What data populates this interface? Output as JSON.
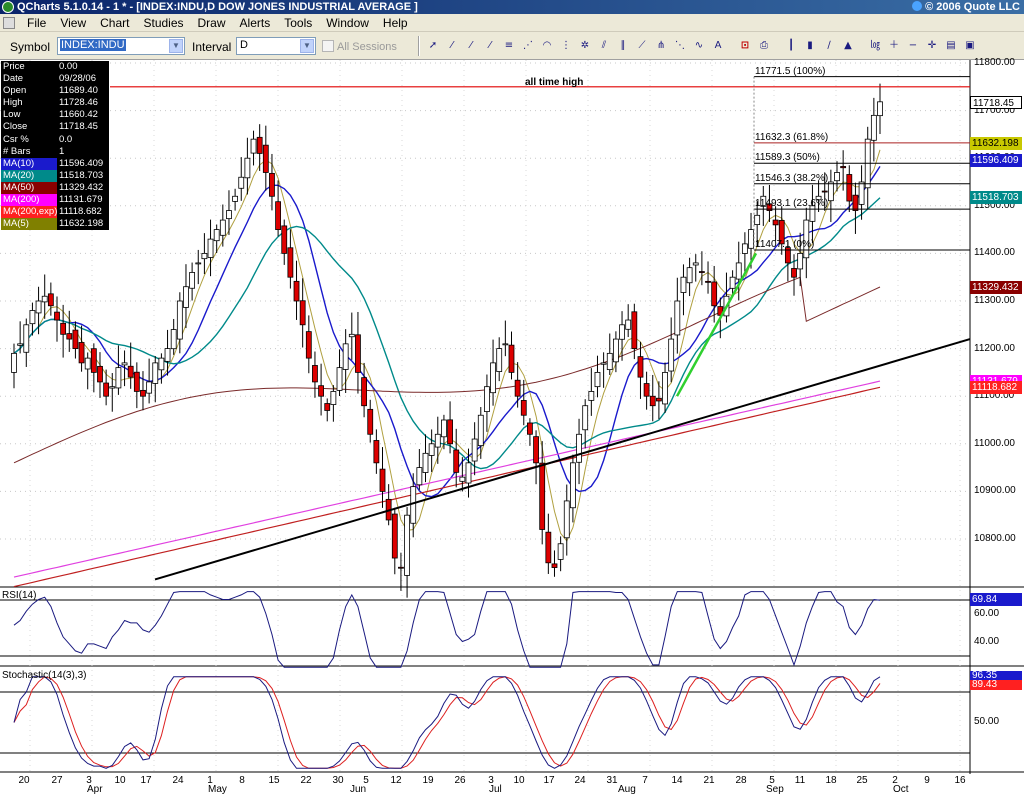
{
  "window": {
    "title": "QCharts 5.1.0.14 - 1 * - [INDEX:INDU,D DOW JONES INDUSTRIAL AVERAGE   ]",
    "copyright": "© 2006 Quote LLC"
  },
  "menu": [
    "File",
    "View",
    "Chart",
    "Studies",
    "Draw",
    "Alerts",
    "Tools",
    "Window",
    "Help"
  ],
  "toolbar": {
    "symbol_label": "Symbol",
    "symbol_value": "INDEX:INDU",
    "interval_label": "Interval",
    "interval_value": "D",
    "all_sessions_label": "All Sessions",
    "all_sessions_checked": false,
    "tool_icons": [
      "cursor-icon",
      "line-icon",
      "ray-icon",
      "extended-line-icon",
      "fib-retracement-icon",
      "fib-fan-icon",
      "fib-arc-icon",
      "fib-time-icon",
      "gann-icon",
      "channel-icon",
      "parallel-icon",
      "regression-icon",
      "andrews-icon",
      "speed-lines-icon",
      "cycle-icon",
      "text-icon",
      "alert-icon",
      "print-icon",
      "bar-chart-icon",
      "candle-chart-icon",
      "line-chart-icon",
      "mountain-chart-icon",
      "log-scale-icon",
      "zoom-in-icon",
      "zoom-out-icon",
      "crosshair-icon",
      "data-window-icon",
      "snapshot-icon"
    ]
  },
  "databox": [
    {
      "label": "Price",
      "value": "0.00",
      "bg": "#000000",
      "fg": "#ffffff"
    },
    {
      "label": "Date",
      "value": "09/28/06",
      "bg": "#000000",
      "fg": "#ffffff"
    },
    {
      "label": "Open",
      "value": "11689.40",
      "bg": "#000000",
      "fg": "#ffffff"
    },
    {
      "label": "High",
      "value": "11728.46",
      "bg": "#000000",
      "fg": "#ffffff"
    },
    {
      "label": "Low",
      "value": "11660.42",
      "bg": "#000000",
      "fg": "#ffffff"
    },
    {
      "label": "Close",
      "value": "11718.45",
      "bg": "#000000",
      "fg": "#ffffff"
    },
    {
      "label": "Csr %",
      "value": "0.0",
      "bg": "#000000",
      "fg": "#ffffff"
    },
    {
      "label": "# Bars",
      "value": "1",
      "bg": "#000000",
      "fg": "#ffffff"
    },
    {
      "label": "MA(10)",
      "value": "11596.409",
      "bg": "#1a1acc",
      "fg": "#ffffff"
    },
    {
      "label": "MA(20)",
      "value": "11518.703",
      "bg": "#008a8a",
      "fg": "#ffffff"
    },
    {
      "label": "MA(50)",
      "value": "11329.432",
      "bg": "#8a0000",
      "fg": "#ffffff"
    },
    {
      "label": "MA(200)",
      "value": "11131.679",
      "bg": "#ff00ff",
      "fg": "#ffffff"
    },
    {
      "label": "MA(200,exp)",
      "value": "11118.682",
      "bg": "#ff2020",
      "fg": "#ffffff"
    },
    {
      "label": "MA(5)",
      "value": "11632.198",
      "bg": "#808000",
      "fg": "#ffffff"
    }
  ],
  "chart_data": {
    "type": "candlestick",
    "title": "INDEX:INDU,D DOW JONES INDUSTRIAL AVERAGE",
    "y_axis": {
      "min": 10700,
      "max": 11800,
      "ticks": [
        "11800.00",
        "11700.00",
        "11600.00",
        "11500.00",
        "11400.00",
        "11300.00",
        "11200.00",
        "11100.00",
        "11000.00",
        "10900.00",
        "10800.00"
      ]
    },
    "annotation": "all time high",
    "all_time_high_level": 11750,
    "fib_levels": [
      {
        "label": "11771.5 (100%)",
        "value": 11771.5
      },
      {
        "label": "11632.3 (61.8%)",
        "value": 11632.3
      },
      {
        "label": "11589.3 (50%)",
        "value": 11589.3
      },
      {
        "label": "11546.3 (38.2%)",
        "value": 11546.3
      },
      {
        "label": "11493.1 (23.6%)",
        "value": 11493.1
      },
      {
        "label": "11407.1 (0%)",
        "value": 11407.1
      }
    ],
    "axis_tags": [
      {
        "text": "11718.45",
        "value": 11718.45,
        "bg": "#ffffff",
        "fg": "#000000"
      },
      {
        "text": "11632.198",
        "value": 11632.198,
        "bg": "#c8c800",
        "fg": "#000000"
      },
      {
        "text": "11596.409",
        "value": 11596.409,
        "bg": "#1a1acc",
        "fg": "#ffffff"
      },
      {
        "text": "11518.703",
        "value": 11518.703,
        "bg": "#008a8a",
        "fg": "#ffffff"
      },
      {
        "text": "11329.432",
        "value": 11329.432,
        "bg": "#8a0000",
        "fg": "#ffffff"
      },
      {
        "text": "11131.679",
        "value": 11131.679,
        "bg": "#ff00ff",
        "fg": "#ffffff"
      },
      {
        "text": "11118.682",
        "value": 11118.682,
        "bg": "#ff2020",
        "fg": "#ffffff"
      }
    ],
    "x_labels": [
      "20",
      "27",
      "3",
      "10",
      "17",
      "24",
      "1",
      "8",
      "15",
      "22",
      "30",
      "5",
      "12",
      "19",
      "26",
      "3",
      "10",
      "17",
      "24",
      "31",
      "7",
      "14",
      "21",
      "28",
      "5",
      "11",
      "18",
      "25",
      "2",
      "9",
      "16"
    ],
    "months": [
      "Apr",
      "May",
      "Jun",
      "Jul",
      "Aug",
      "Sep",
      "Oct"
    ],
    "candles_close": [
      11190,
      11210,
      11250,
      11280,
      11300,
      11310,
      11290,
      11260,
      11230,
      11220,
      11200,
      11170,
      11180,
      11150,
      11130,
      11100,
      11120,
      11160,
      11170,
      11140,
      11110,
      11100,
      11130,
      11170,
      11180,
      11200,
      11240,
      11300,
      11330,
      11360,
      11380,
      11400,
      11430,
      11450,
      11470,
      11490,
      11520,
      11560,
      11600,
      11640,
      11610,
      11570,
      11520,
      11450,
      11400,
      11350,
      11300,
      11250,
      11180,
      11130,
      11100,
      11070,
      11110,
      11160,
      11210,
      11230,
      11150,
      11080,
      11020,
      10960,
      10900,
      10840,
      10760,
      10740,
      10850,
      10910,
      10950,
      10980,
      11000,
      11020,
      11050,
      11000,
      10940,
      10930,
      10960,
      11010,
      11060,
      11120,
      11170,
      11200,
      11210,
      11150,
      11100,
      11060,
      11020,
      10960,
      10820,
      10750,
      10740,
      10790,
      10880,
      10960,
      11020,
      11080,
      11110,
      11150,
      11170,
      11190,
      11220,
      11250,
      11260,
      11200,
      11140,
      11100,
      11080,
      11090,
      11150,
      11220,
      11300,
      11350,
      11370,
      11380,
      11360,
      11340,
      11290,
      11270,
      11310,
      11350,
      11380,
      11420,
      11450,
      11480,
      11520,
      11490,
      11460,
      11420,
      11380,
      11350,
      11400,
      11470,
      11500,
      11520,
      11530,
      11550,
      11570,
      11580,
      11510,
      11490,
      11550,
      11640,
      11690,
      11718.45
    ],
    "rsi": {
      "title": "RSI(14)",
      "last": "69.84",
      "ticks": [
        "60.00",
        "40.00"
      ]
    },
    "stochastic": {
      "title": "Stochastic(14(3),3)",
      "last_k": "96.35",
      "last_d": "89.43",
      "ticks": [
        "50.00"
      ]
    }
  }
}
